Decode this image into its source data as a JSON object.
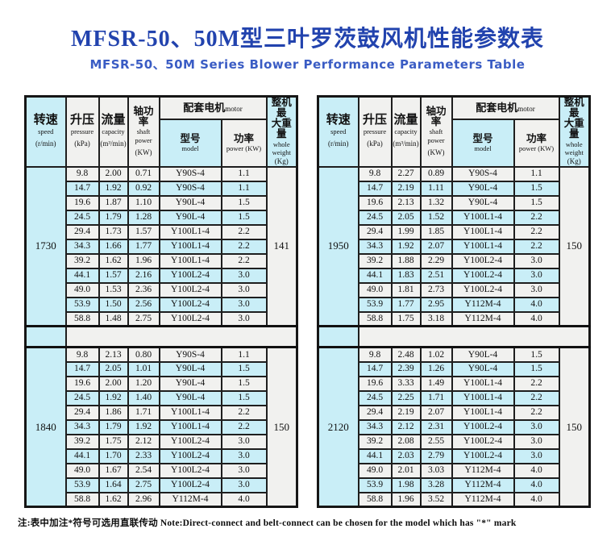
{
  "title": "MFSR-50、50M型三叶罗茨鼓风机性能参数表",
  "subtitle": "MFSR-50、50M Series Blower Performance Parameters Table",
  "note": "注:表中加注*符号可选用直联传动 Note:Direct-connect and belt-connect can be chosen for the model which has \"*\" mark",
  "colors": {
    "title_blue": "#2243ae",
    "subtitle_blue": "#3a5cc4",
    "cyan_fill": "#c9eef7",
    "gray_fill": "#f1f1ef",
    "border": "#1e1e1e"
  },
  "header": {
    "speed_zh": "转速",
    "speed_en": "speed",
    "speed_unit": "(r/min)",
    "pressure_zh": "升压",
    "pressure_en": "pressure",
    "pressure_unit": "(kPa)",
    "capacity_zh": "流量",
    "capacity_en": "capacity",
    "capacity_unit": "(m³/min)",
    "shaft_zh": "轴功率",
    "shaft_en": "shaft power",
    "shaft_unit": "(KW)",
    "motor_zh": "配套电机",
    "motor_en": "motor",
    "model_zh": "型号",
    "model_en": "model",
    "power_zh": "功率",
    "power_en": "power (KW)",
    "weight_zh_line1": "整机最",
    "weight_zh_line2": "大重量",
    "weight_en": "whole weight",
    "weight_unit": "(Kg)"
  },
  "tables": [
    {
      "sections": [
        {
          "speed": "1730",
          "weight": "141",
          "rows": [
            [
              "9.8",
              "2.00",
              "0.71",
              "Y90S-4",
              "1.1"
            ],
            [
              "14.7",
              "1.92",
              "0.92",
              "Y90S-4",
              "1.1"
            ],
            [
              "19.6",
              "1.87",
              "1.10",
              "Y90L-4",
              "1.5"
            ],
            [
              "24.5",
              "1.79",
              "1.28",
              "Y90L-4",
              "1.5"
            ],
            [
              "29.4",
              "1.73",
              "1.57",
              "Y100L1-4",
              "2.2"
            ],
            [
              "34.3",
              "1.66",
              "1.77",
              "Y100L1-4",
              "2.2"
            ],
            [
              "39.2",
              "1.62",
              "1.96",
              "Y100L1-4",
              "2.2"
            ],
            [
              "44.1",
              "1.57",
              "2.16",
              "Y100L2-4",
              "3.0"
            ],
            [
              "49.0",
              "1.53",
              "2.36",
              "Y100L2-4",
              "3.0"
            ],
            [
              "53.9",
              "1.50",
              "2.56",
              "Y100L2-4",
              "3.0"
            ],
            [
              "58.8",
              "1.48",
              "2.75",
              "Y100L2-4",
              "3.0"
            ]
          ]
        },
        {
          "speed": "1840",
          "weight": "150",
          "rows": [
            [
              "9.8",
              "2.13",
              "0.80",
              "Y90S-4",
              "1.1"
            ],
            [
              "14.7",
              "2.05",
              "1.01",
              "Y90L-4",
              "1.5"
            ],
            [
              "19.6",
              "2.00",
              "1.20",
              "Y90L-4",
              "1.5"
            ],
            [
              "24.5",
              "1.92",
              "1.40",
              "Y90L-4",
              "1.5"
            ],
            [
              "29.4",
              "1.86",
              "1.71",
              "Y100L1-4",
              "2.2"
            ],
            [
              "34.3",
              "1.79",
              "1.92",
              "Y100L1-4",
              "2.2"
            ],
            [
              "39.2",
              "1.75",
              "2.12",
              "Y100L2-4",
              "3.0"
            ],
            [
              "44.1",
              "1.70",
              "2.33",
              "Y100L2-4",
              "3.0"
            ],
            [
              "49.0",
              "1.67",
              "2.54",
              "Y100L2-4",
              "3.0"
            ],
            [
              "53.9",
              "1.64",
              "2.75",
              "Y100L2-4",
              "3.0"
            ],
            [
              "58.8",
              "1.62",
              "2.96",
              "Y112M-4",
              "4.0"
            ]
          ]
        }
      ]
    },
    {
      "sections": [
        {
          "speed": "1950",
          "weight": "150",
          "rows": [
            [
              "9.8",
              "2.27",
              "0.89",
              "Y90S-4",
              "1.1"
            ],
            [
              "14.7",
              "2.19",
              "1.11",
              "Y90L-4",
              "1.5"
            ],
            [
              "19.6",
              "2.13",
              "1.32",
              "Y90L-4",
              "1.5"
            ],
            [
              "24.5",
              "2.05",
              "1.52",
              "Y100L1-4",
              "2.2"
            ],
            [
              "29.4",
              "1.99",
              "1.85",
              "Y100L1-4",
              "2.2"
            ],
            [
              "34.3",
              "1.92",
              "2.07",
              "Y100L1-4",
              "2.2"
            ],
            [
              "39.2",
              "1.88",
              "2.29",
              "Y100L2-4",
              "3.0"
            ],
            [
              "44.1",
              "1.83",
              "2.51",
              "Y100L2-4",
              "3.0"
            ],
            [
              "49.0",
              "1.81",
              "2.73",
              "Y100L2-4",
              "3.0"
            ],
            [
              "53.9",
              "1.77",
              "2.95",
              "Y112M-4",
              "4.0"
            ],
            [
              "58.8",
              "1.75",
              "3.18",
              "Y112M-4",
              "4.0"
            ]
          ]
        },
        {
          "speed": "2120",
          "weight": "150",
          "rows": [
            [
              "9.8",
              "2.48",
              "1.02",
              "Y90L-4",
              "1.5"
            ],
            [
              "14.7",
              "2.39",
              "1.26",
              "Y90L-4",
              "1.5"
            ],
            [
              "19.6",
              "3.33",
              "1.49",
              "Y100L1-4",
              "2.2"
            ],
            [
              "24.5",
              "2.25",
              "1.71",
              "Y100L1-4",
              "2.2"
            ],
            [
              "29.4",
              "2.19",
              "2.07",
              "Y100L1-4",
              "2.2"
            ],
            [
              "34.3",
              "2.12",
              "2.31",
              "Y100L2-4",
              "3.0"
            ],
            [
              "39.2",
              "2.08",
              "2.55",
              "Y100L2-4",
              "3.0"
            ],
            [
              "44.1",
              "2.03",
              "2.79",
              "Y100L2-4",
              "3.0"
            ],
            [
              "49.0",
              "2.01",
              "3.03",
              "Y112M-4",
              "4.0"
            ],
            [
              "53.9",
              "1.98",
              "3.28",
              "Y112M-4",
              "4.0"
            ],
            [
              "58.8",
              "1.96",
              "3.52",
              "Y112M-4",
              "4.0"
            ]
          ]
        }
      ]
    }
  ]
}
